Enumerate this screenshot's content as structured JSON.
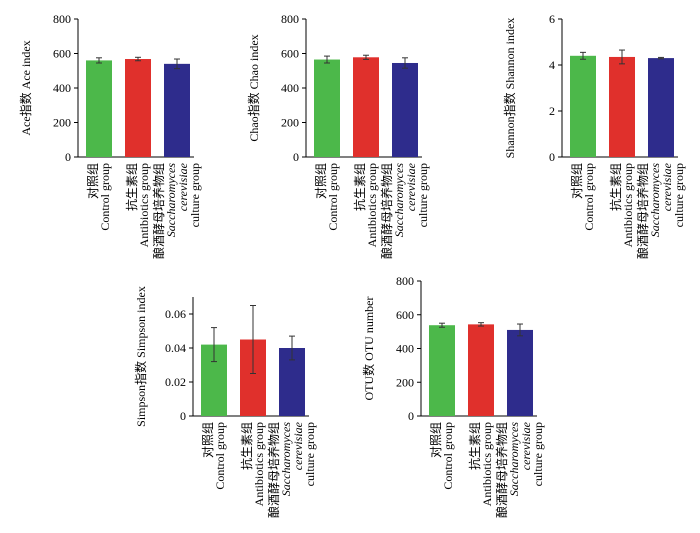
{
  "colors": {
    "control": "#4cb84a",
    "antibiotics": "#e0302c",
    "saccharomyces": "#2e2c8c"
  },
  "categories": [
    {
      "zh": "对照组",
      "en": [
        "Control group"
      ]
    },
    {
      "zh": "抗生素组",
      "en": [
        "Antibiotics group"
      ]
    },
    {
      "zh": "酿酒酵母培养物组",
      "en": [
        "Saccharomyces",
        "cerevisiae",
        "culture group"
      ]
    }
  ],
  "chart_data": [
    {
      "type": "bar",
      "ylabel": "Ace指数 Ace index",
      "categories": [
        "对照组 Control group",
        "抗生素组 Antibiotics group",
        "酿酒酵母培养物组 Saccharomyces cerevisiae culture group"
      ],
      "values": [
        560,
        568,
        540
      ],
      "errors": [
        15,
        10,
        28
      ],
      "ylim": [
        0,
        800
      ],
      "yticks": [
        0,
        200,
        400,
        600,
        800
      ]
    },
    {
      "type": "bar",
      "ylabel": "Chao指数 Chao index",
      "categories": [
        "对照组 Control group",
        "抗生素组 Antibiotics group",
        "酿酒酵母培养物组 Saccharomyces cerevisiae culture group"
      ],
      "values": [
        565,
        578,
        545
      ],
      "errors": [
        20,
        12,
        30
      ],
      "ylim": [
        0,
        800
      ],
      "yticks": [
        0,
        200,
        400,
        600,
        800
      ]
    },
    {
      "type": "bar",
      "ylabel": "Shannon指数 Shannon index",
      "categories": [
        "对照组 Control group",
        "抗生素组 Antibiotics group",
        "酿酒酵母培养物组 Saccharomyces cerevisiae culture group"
      ],
      "values": [
        4.4,
        4.35,
        4.3
      ],
      "errors": [
        0.15,
        0.3,
        0.03
      ],
      "ylim": [
        0,
        6
      ],
      "yticks": [
        0,
        2,
        4,
        6
      ]
    },
    {
      "type": "bar",
      "ylabel": "Simpson指数 Simpson index",
      "categories": [
        "对照组 Control group",
        "抗生素组 Antibiotics group",
        "酿酒酵母培养物组 Saccharomyces cerevisiae culture group"
      ],
      "values": [
        0.042,
        0.045,
        0.04
      ],
      "errors": [
        0.01,
        0.02,
        0.007
      ],
      "ylim": [
        0,
        0.07
      ],
      "yticks": [
        0,
        0.02,
        0.04,
        0.06
      ]
    },
    {
      "type": "bar",
      "ylabel": "OTU数 OTU number",
      "categories": [
        "对照组 Control group",
        "抗生素组 Antibiotics group",
        "酿酒酵母培养物组 Saccharomyces cerevisiae culture group"
      ],
      "values": [
        538,
        543,
        510
      ],
      "errors": [
        12,
        10,
        35
      ],
      "ylim": [
        0,
        800
      ],
      "yticks": [
        0,
        200,
        400,
        600,
        800
      ]
    }
  ]
}
